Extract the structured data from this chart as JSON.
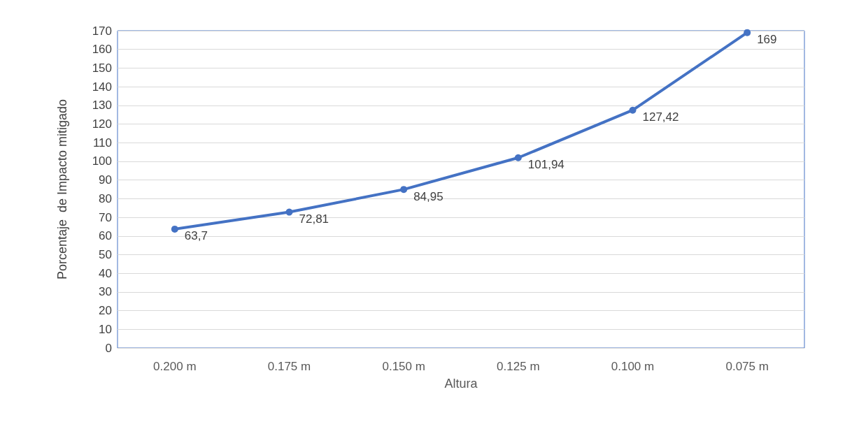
{
  "chart_data": {
    "type": "line",
    "xlabel": "Altura",
    "ylabel": "Porcentaje  de Impacto mitigado",
    "categories": [
      "0.200 m",
      "0.175 m",
      "0.150 m",
      "0.125 m",
      "0.100 m",
      "0.075 m"
    ],
    "series": [
      {
        "color": "#4472c4",
        "values": [
          63.7,
          72.81,
          84.95,
          101.94,
          127.42,
          169
        ],
        "value_labels": [
          "63,7",
          "72,81",
          "84,95",
          "101,94",
          "127,42",
          "169"
        ]
      }
    ],
    "ylim": [
      0,
      170
    ],
    "yticks": [
      0,
      10,
      20,
      30,
      40,
      50,
      60,
      70,
      80,
      90,
      100,
      110,
      120,
      130,
      140,
      150,
      160,
      170
    ],
    "grid": "y",
    "marker": "circle",
    "line_style": "solid"
  }
}
